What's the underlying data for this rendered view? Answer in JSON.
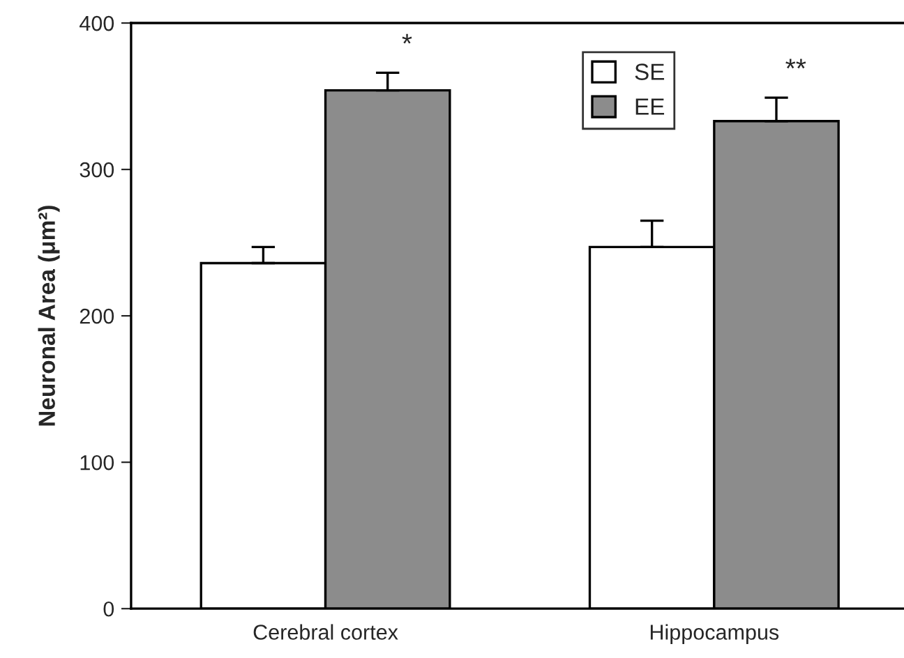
{
  "chart_data": {
    "type": "bar",
    "ylabel": "Neuronal Area (μm²)",
    "categories": [
      "Cerebral cortex",
      "Hippocampus"
    ],
    "series": [
      {
        "name": "SE",
        "color": "#ffffff",
        "values": [
          236,
          247
        ],
        "errors": [
          [
            236,
            247
          ],
          [
            247,
            265
          ]
        ]
      },
      {
        "name": "EE",
        "color": "#8c8c8c",
        "values": [
          354,
          333
        ],
        "errors": [
          [
            354,
            366
          ],
          [
            333,
            349
          ]
        ]
      }
    ],
    "ylim": [
      0,
      400
    ],
    "yticks": [
      0,
      100,
      200,
      300,
      400
    ],
    "annotations": [
      "*",
      "**"
    ],
    "grid": false,
    "legend": "top"
  }
}
